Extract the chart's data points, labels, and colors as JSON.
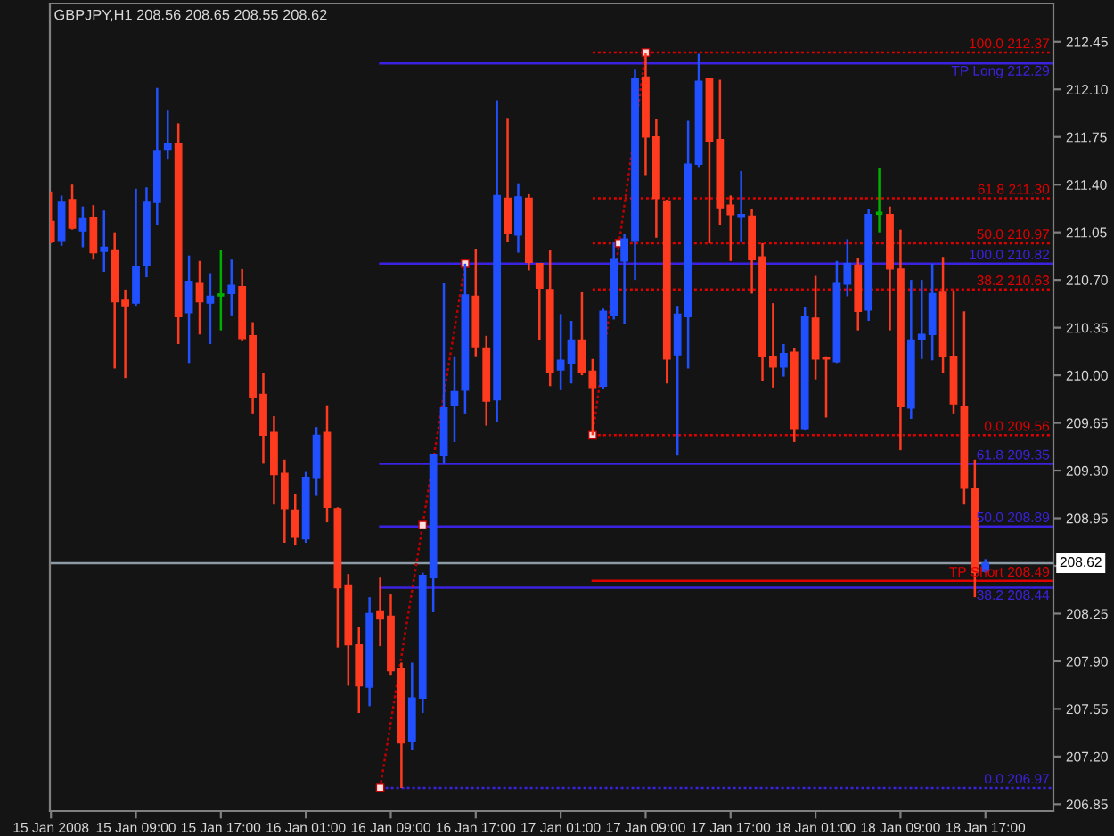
{
  "chart_data": {
    "type": "candlestick",
    "title": "GBPJPY,H1 208.56 208.65 208.55 208.62",
    "x": [
      "2008-01-15T01:00",
      "2008-01-15T02:00",
      "2008-01-15T03:00",
      "2008-01-15T04:00",
      "2008-01-15T05:00",
      "2008-01-15T06:00",
      "2008-01-15T07:00",
      "2008-01-15T08:00",
      "2008-01-15T09:00",
      "2008-01-15T10:00",
      "2008-01-15T11:00",
      "2008-01-15T12:00",
      "2008-01-15T13:00",
      "2008-01-15T14:00",
      "2008-01-15T15:00",
      "2008-01-15T16:00",
      "2008-01-15T17:00",
      "2008-01-15T18:00",
      "2008-01-15T19:00",
      "2008-01-15T20:00",
      "2008-01-15T21:00",
      "2008-01-15T22:00",
      "2008-01-15T23:00",
      "2008-01-16T00:00",
      "2008-01-16T01:00",
      "2008-01-16T02:00",
      "2008-01-16T03:00",
      "2008-01-16T04:00",
      "2008-01-16T05:00",
      "2008-01-16T06:00",
      "2008-01-16T07:00",
      "2008-01-16T08:00",
      "2008-01-16T09:00",
      "2008-01-16T10:00",
      "2008-01-16T11:00",
      "2008-01-16T12:00",
      "2008-01-16T13:00",
      "2008-01-16T14:00",
      "2008-01-16T15:00",
      "2008-01-16T16:00",
      "2008-01-16T17:00",
      "2008-01-16T18:00",
      "2008-01-16T19:00",
      "2008-01-16T20:00",
      "2008-01-16T21:00",
      "2008-01-16T22:00",
      "2008-01-16T23:00",
      "2008-01-17T00:00",
      "2008-01-17T01:00",
      "2008-01-17T02:00",
      "2008-01-17T03:00",
      "2008-01-17T04:00",
      "2008-01-17T05:00",
      "2008-01-17T06:00",
      "2008-01-17T07:00",
      "2008-01-17T08:00",
      "2008-01-17T09:00",
      "2008-01-17T10:00",
      "2008-01-17T11:00",
      "2008-01-17T12:00",
      "2008-01-17T13:00",
      "2008-01-17T14:00",
      "2008-01-17T15:00",
      "2008-01-17T16:00",
      "2008-01-17T17:00",
      "2008-01-17T18:00",
      "2008-01-17T19:00",
      "2008-01-17T20:00",
      "2008-01-17T21:00",
      "2008-01-17T22:00",
      "2008-01-17T23:00",
      "2008-01-18T00:00",
      "2008-01-18T01:00",
      "2008-01-18T02:00",
      "2008-01-18T03:00",
      "2008-01-18T04:00",
      "2008-01-18T05:00",
      "2008-01-18T06:00",
      "2008-01-18T07:00",
      "2008-01-18T08:00",
      "2008-01-18T09:00",
      "2008-01-18T10:00",
      "2008-01-18T11:00",
      "2008-01-18T12:00",
      "2008-01-18T13:00",
      "2008-01-18T14:00",
      "2008-01-18T15:00",
      "2008-01-18T16:00",
      "2008-01-18T17:00"
    ],
    "ohlc": [
      [
        211.13,
        211.35,
        210.97,
        210.98
      ],
      [
        210.99,
        211.32,
        210.95,
        211.27
      ],
      [
        211.29,
        211.4,
        211.07,
        211.08
      ],
      [
        211.06,
        211.24,
        210.94,
        211.15
      ],
      [
        211.16,
        211.25,
        210.85,
        210.9
      ],
      [
        210.91,
        211.21,
        210.76,
        210.94
      ],
      [
        210.92,
        211.05,
        210.05,
        210.54
      ],
      [
        210.55,
        210.63,
        209.98,
        210.51
      ],
      [
        210.53,
        211.37,
        210.51,
        210.8
      ],
      [
        210.81,
        211.38,
        210.72,
        211.27
      ],
      [
        211.27,
        212.11,
        211.1,
        211.65
      ],
      [
        211.66,
        211.95,
        211.59,
        211.7
      ],
      [
        211.7,
        211.85,
        210.23,
        210.43
      ],
      [
        210.46,
        210.88,
        210.09,
        210.69
      ],
      [
        210.68,
        210.84,
        210.3,
        210.54
      ],
      [
        210.53,
        210.75,
        210.23,
        210.58
      ],
      [
        210.59,
        210.92,
        210.33,
        210.59
      ],
      [
        210.6,
        210.85,
        210.44,
        210.66
      ],
      [
        210.65,
        210.78,
        210.25,
        210.27
      ],
      [
        210.29,
        210.39,
        209.72,
        209.84
      ],
      [
        209.86,
        210.02,
        209.35,
        209.56
      ],
      [
        209.58,
        209.7,
        209.05,
        209.27
      ],
      [
        209.28,
        209.38,
        208.77,
        209.02
      ],
      [
        209.01,
        209.13,
        208.75,
        208.81
      ],
      [
        208.8,
        209.29,
        208.77,
        209.25
      ],
      [
        209.25,
        209.62,
        209.12,
        209.56
      ],
      [
        209.58,
        209.78,
        208.92,
        209.03
      ],
      [
        209.02,
        209.03,
        208.0,
        208.44
      ],
      [
        208.46,
        208.54,
        207.72,
        208.02
      ],
      [
        208.02,
        208.15,
        207.52,
        207.72
      ],
      [
        207.71,
        208.37,
        207.57,
        208.25
      ],
      [
        208.27,
        208.52,
        208.01,
        208.21
      ],
      [
        208.23,
        208.39,
        207.8,
        207.83
      ],
      [
        207.85,
        207.89,
        206.97,
        207.3
      ],
      [
        207.31,
        207.89,
        207.25,
        207.63
      ],
      [
        207.63,
        208.55,
        207.52,
        208.53
      ],
      [
        208.52,
        209.42,
        208.26,
        209.42
      ],
      [
        209.41,
        210.68,
        209.35,
        209.76
      ],
      [
        209.78,
        210.14,
        209.51,
        209.88
      ],
      [
        209.89,
        210.82,
        209.72,
        210.59
      ],
      [
        210.58,
        210.93,
        210.14,
        210.21
      ],
      [
        210.2,
        210.29,
        209.63,
        209.81
      ],
      [
        209.82,
        212.02,
        209.66,
        211.32
      ],
      [
        211.3,
        211.89,
        210.98,
        211.04
      ],
      [
        211.03,
        211.41,
        210.9,
        211.31
      ],
      [
        211.3,
        211.33,
        210.77,
        210.83
      ],
      [
        210.82,
        210.82,
        210.26,
        210.64
      ],
      [
        210.63,
        210.92,
        209.92,
        210.02
      ],
      [
        210.04,
        210.45,
        209.89,
        210.11
      ],
      [
        210.09,
        210.4,
        209.94,
        210.26
      ],
      [
        210.26,
        210.61,
        210.0,
        210.02
      ],
      [
        210.03,
        210.12,
        209.56,
        209.91
      ],
      [
        209.92,
        210.49,
        209.9,
        210.47
      ],
      [
        210.44,
        210.98,
        210.41,
        210.85
      ],
      [
        210.84,
        211.04,
        210.38,
        211.0
      ],
      [
        210.99,
        212.25,
        210.7,
        212.18
      ],
      [
        212.19,
        212.37,
        211.47,
        211.75
      ],
      [
        211.75,
        211.88,
        211.01,
        211.3
      ],
      [
        211.28,
        211.29,
        209.94,
        210.12
      ],
      [
        210.15,
        210.51,
        209.41,
        210.45
      ],
      [
        210.43,
        211.87,
        210.05,
        211.55
      ],
      [
        211.55,
        212.36,
        211.53,
        212.16
      ],
      [
        212.18,
        212.18,
        210.97,
        211.72
      ],
      [
        211.73,
        212.17,
        211.1,
        211.23
      ],
      [
        211.25,
        211.32,
        210.84,
        211.18
      ],
      [
        211.16,
        211.5,
        210.98,
        211.18
      ],
      [
        211.17,
        211.22,
        210.6,
        210.85
      ],
      [
        210.87,
        210.97,
        209.96,
        210.14
      ],
      [
        210.14,
        210.53,
        209.91,
        210.06
      ],
      [
        210.06,
        210.23,
        209.99,
        210.16
      ],
      [
        210.17,
        210.2,
        209.51,
        209.61
      ],
      [
        209.61,
        210.5,
        209.6,
        210.43
      ],
      [
        210.42,
        210.73,
        209.97,
        210.12
      ],
      [
        210.13,
        210.14,
        209.69,
        210.12
      ],
      [
        210.1,
        210.84,
        210.09,
        210.68
      ],
      [
        210.67,
        211.0,
        210.58,
        210.82
      ],
      [
        210.81,
        210.86,
        210.33,
        210.47
      ],
      [
        210.48,
        211.22,
        210.4,
        211.18
      ],
      [
        211.19,
        211.52,
        211.05,
        211.19
      ],
      [
        211.18,
        211.24,
        210.33,
        210.78
      ],
      [
        210.78,
        211.07,
        209.45,
        209.77
      ],
      [
        209.76,
        210.7,
        209.68,
        210.26
      ],
      [
        210.26,
        210.7,
        210.12,
        210.3
      ],
      [
        210.3,
        210.82,
        210.11,
        210.6
      ],
      [
        210.61,
        210.87,
        210.02,
        210.14
      ],
      [
        210.14,
        210.62,
        209.72,
        209.79
      ],
      [
        209.77,
        210.47,
        209.05,
        209.17
      ],
      [
        209.17,
        209.38,
        208.37,
        208.55
      ],
      [
        208.56,
        208.65,
        208.55,
        208.62
      ]
    ],
    "colors": [
      "#ff3b1f",
      "#2050ff",
      "#ff3b1f",
      "#2050ff",
      "#ff3b1f",
      "#2050ff",
      "#ff3b1f",
      "#ff3b1f",
      "#2050ff",
      "#2050ff",
      "#2050ff",
      "#2050ff",
      "#ff3b1f",
      "#2050ff",
      "#ff3b1f",
      "#2050ff",
      "#00b000",
      "#2050ff",
      "#ff3b1f",
      "#ff3b1f",
      "#ff3b1f",
      "#ff3b1f",
      "#ff3b1f",
      "#ff3b1f",
      "#2050ff",
      "#2050ff",
      "#ff3b1f",
      "#ff3b1f",
      "#ff3b1f",
      "#ff3b1f",
      "#2050ff",
      "#ff3b1f",
      "#ff3b1f",
      "#ff3b1f",
      "#2050ff",
      "#2050ff",
      "#2050ff",
      "#2050ff",
      "#2050ff",
      "#2050ff",
      "#ff3b1f",
      "#ff3b1f",
      "#2050ff",
      "#ff3b1f",
      "#2050ff",
      "#ff3b1f",
      "#ff3b1f",
      "#ff3b1f",
      "#2050ff",
      "#2050ff",
      "#ff3b1f",
      "#ff3b1f",
      "#2050ff",
      "#2050ff",
      "#2050ff",
      "#2050ff",
      "#ff3b1f",
      "#ff3b1f",
      "#ff3b1f",
      "#2050ff",
      "#2050ff",
      "#2050ff",
      "#ff3b1f",
      "#ff3b1f",
      "#ff3b1f",
      "#2050ff",
      "#ff3b1f",
      "#ff3b1f",
      "#ff3b1f",
      "#2050ff",
      "#ff3b1f",
      "#2050ff",
      "#ff3b1f",
      "#ff3b1f",
      "#2050ff",
      "#2050ff",
      "#ff3b1f",
      "#2050ff",
      "#00b000",
      "#ff3b1f",
      "#ff3b1f",
      "#2050ff",
      "#2050ff",
      "#2050ff",
      "#ff3b1f",
      "#ff3b1f",
      "#ff3b1f",
      "#ff3b1f",
      "#2050ff"
    ],
    "series": [
      {
        "type": "line",
        "name": "100.0 212.37",
        "color": "#e00000",
        "line_style": "dotted",
        "x": [
          "2008-01-17T04:00",
          "2008-01-18T23:24"
        ],
        "values": [
          212.37,
          212.37
        ]
      },
      {
        "type": "line",
        "name": "61.8 211.30",
        "color": "#e00000",
        "line_style": "dotted",
        "x": [
          "2008-01-17T04:00",
          "2008-01-18T23:24"
        ],
        "values": [
          211.3,
          211.3
        ]
      },
      {
        "type": "line",
        "name": "50.0 210.97",
        "color": "#e00000",
        "line_style": "dotted",
        "x": [
          "2008-01-17T04:00",
          "2008-01-18T23:24"
        ],
        "values": [
          210.97,
          210.97
        ]
      },
      {
        "type": "line",
        "name": "38.2 210.63",
        "color": "#e00000",
        "line_style": "dotted",
        "x": [
          "2008-01-17T04:00",
          "2008-01-18T23:24"
        ],
        "values": [
          210.63,
          210.63
        ]
      },
      {
        "type": "line",
        "name": "0.0 209.56",
        "color": "#e00000",
        "line_style": "dotted",
        "x": [
          "2008-01-17T04:00",
          "2008-01-18T23:24"
        ],
        "values": [
          209.56,
          209.56
        ]
      },
      {
        "type": "line",
        "name": "TP Short 208.49",
        "color": "#e00000",
        "line_style": "solid",
        "x": [
          "2008-01-17T04:00",
          "2008-01-18T23:24"
        ],
        "values": [
          208.49,
          208.49
        ]
      },
      {
        "type": "line",
        "name": "TP Long 212.29",
        "color": "#3a22e0",
        "line_style": "solid",
        "x": [
          "2008-01-16T08:00",
          "2008-01-18T23:24"
        ],
        "values": [
          212.29,
          212.29
        ]
      },
      {
        "type": "line",
        "name": "100.0 210.82",
        "color": "#3a22e0",
        "line_style": "solid",
        "x": [
          "2008-01-16T08:00",
          "2008-01-18T23:24"
        ],
        "values": [
          210.82,
          210.82
        ]
      },
      {
        "type": "line",
        "name": "61.8 209.35",
        "color": "#3a22e0",
        "line_style": "solid",
        "x": [
          "2008-01-16T08:00",
          "2008-01-18T23:24"
        ],
        "values": [
          209.35,
          209.35
        ]
      },
      {
        "type": "line",
        "name": "50.0 208.89",
        "color": "#3a22e0",
        "line_style": "solid",
        "x": [
          "2008-01-16T08:00",
          "2008-01-18T23:24"
        ],
        "values": [
          208.89,
          208.89
        ]
      },
      {
        "type": "line",
        "name": "38.2 208.44",
        "color": "#3a22e0",
        "line_style": "solid",
        "x": [
          "2008-01-16T08:00",
          "2008-01-18T23:24"
        ],
        "values": [
          208.44,
          208.44
        ]
      },
      {
        "type": "line",
        "name": "0.0 206.97",
        "color": "#3a22e0",
        "line_style": "dotted",
        "x": [
          "2008-01-16T08:00",
          "2008-01-18T23:24"
        ],
        "values": [
          206.97,
          206.97
        ]
      },
      {
        "type": "line",
        "color": "#c00000",
        "line_style": "dotted",
        "marker": "square",
        "x": [
          "2008-01-16T08:00",
          "2008-01-16T12:00",
          "2008-01-16T16:00"
        ],
        "values": [
          206.97,
          208.9,
          210.82
        ]
      },
      {
        "type": "line",
        "color": "#c00000",
        "line_style": "dotted",
        "marker": "square",
        "x": [
          "2008-01-17T04:00",
          "2008-01-17T06:30",
          "2008-01-17T09:00"
        ],
        "values": [
          209.56,
          210.97,
          212.37
        ]
      }
    ],
    "ref_lines": [
      {
        "axis": "y",
        "value": 208.62,
        "label": "208.62",
        "color": "#8c9ba5",
        "line_style": "solid"
      }
    ],
    "xlim": [
      "2008-01-15T00:54",
      "2008-01-18T23:24"
    ],
    "xticks": [
      {
        "value": "2008-01-15T01:00",
        "label": "15 Jan 2008"
      },
      {
        "value": "2008-01-15T09:00",
        "label": "15 Jan 09:00"
      },
      {
        "value": "2008-01-15T17:00",
        "label": "15 Jan 17:00"
      },
      {
        "value": "2008-01-16T01:00",
        "label": "16 Jan 01:00"
      },
      {
        "value": "2008-01-16T09:00",
        "label": "16 Jan 09:00"
      },
      {
        "value": "2008-01-16T17:00",
        "label": "16 Jan 17:00"
      },
      {
        "value": "2008-01-17T01:00",
        "label": "17 Jan 01:00"
      },
      {
        "value": "2008-01-17T09:00",
        "label": "17 Jan 09:00"
      },
      {
        "value": "2008-01-17T17:00",
        "label": "17 Jan 17:00"
      },
      {
        "value": "2008-01-18T01:00",
        "label": "18 Jan 01:00"
      },
      {
        "value": "2008-01-18T09:00",
        "label": "18 Jan 09:00"
      },
      {
        "value": "2008-01-18T17:00",
        "label": "18 Jan 17:00"
      }
    ],
    "ylim": [
      206.8,
      212.73
    ],
    "yticks": [
      206.85,
      {
        "value": 207.2,
        "label": "207.20"
      },
      207.55,
      {
        "value": 207.9,
        "label": "207.90"
      },
      208.25,
      {
        "value": 208.6,
        "label": null
      },
      208.95,
      {
        "value": 209.3,
        "label": "209.30"
      },
      209.65,
      {
        "value": 210,
        "label": "210.00"
      },
      210.35,
      {
        "value": 210.7,
        "label": "210.70"
      },
      211.05,
      {
        "value": 211.4,
        "label": "211.40"
      },
      211.75,
      {
        "value": 212.1,
        "label": "212.10"
      },
      212.45
    ]
  }
}
